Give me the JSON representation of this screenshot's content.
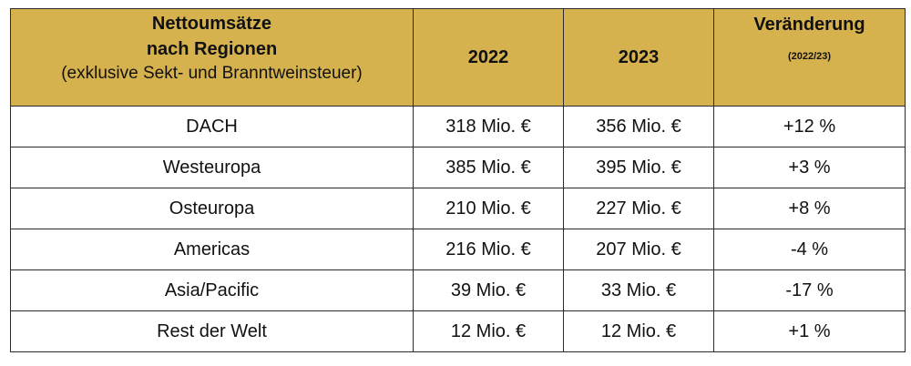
{
  "header": {
    "region_line1": "Nettoumsätze",
    "region_line2": "nach Regionen",
    "region_line3": "(exklusive Sekt- und Branntweinsteuer)",
    "year_2022": "2022",
    "year_2023": "2023",
    "change_label": "Veränderung",
    "change_period": "(2022/23)"
  },
  "rows": [
    {
      "region": "DACH",
      "y2022": "318 Mio. €",
      "y2023": "356 Mio. €",
      "change": "+12 %"
    },
    {
      "region": "Westeuropa",
      "y2022": "385 Mio. €",
      "y2023": "395 Mio. €",
      "change": "+3 %"
    },
    {
      "region": "Osteuropa",
      "y2022": "210 Mio. €",
      "y2023": "227 Mio. €",
      "change": "+8 %"
    },
    {
      "region": "Americas",
      "y2022": "216 Mio. €",
      "y2023": "207 Mio. €",
      "change": "-4 %"
    },
    {
      "region": "Asia/Pacific",
      "y2022": "39 Mio. €",
      "y2023": "33 Mio. €",
      "change": "-17 %"
    },
    {
      "region": "Rest der Welt",
      "y2022": "12 Mio. €",
      "y2023": "12 Mio. €",
      "change": "+1 %"
    }
  ],
  "colors": {
    "header_background": "#d6b24e",
    "border": "#2b2b2b"
  }
}
